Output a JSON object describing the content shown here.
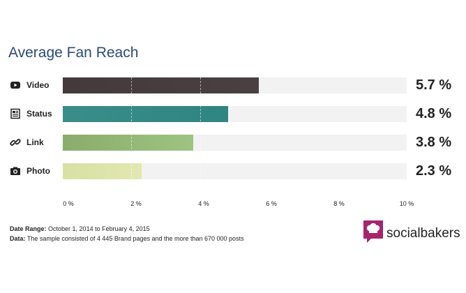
{
  "chart_data": {
    "type": "bar",
    "orientation": "horizontal",
    "title": "Average Fan Reach",
    "categories": [
      "Video",
      "Status",
      "Link",
      "Photo"
    ],
    "values": [
      5.7,
      4.8,
      3.8,
      2.3
    ],
    "value_labels": [
      "5.7 %",
      "4.8 %",
      "3.8 %",
      "2.3 %"
    ],
    "x_ticks": [
      "0 %",
      "2 %",
      "4 %",
      "6 %",
      "8 %",
      "10 %"
    ],
    "xlim": [
      0,
      10
    ],
    "grid": true,
    "bar_colors": [
      "#443a3c",
      "#3a8d8a",
      "#8aac6c",
      "#d8e0a2"
    ],
    "bar_colors_end": [
      "#4a4042",
      "#2f8580",
      "#9dc482",
      "#e2e8b0"
    ],
    "category_icons": [
      "play-icon",
      "status-icon",
      "link-icon",
      "camera-icon"
    ]
  },
  "footer": {
    "date_range_label": "Date Range:",
    "date_range_value": "October 1, 2014 to February 4, 2015",
    "data_label": "Data:",
    "data_value": "The sample consisted of 4 445 Brand pages and the more than 670 000 posts"
  },
  "brand": {
    "name": "socialbakers",
    "logo_color": "#a8246c"
  }
}
